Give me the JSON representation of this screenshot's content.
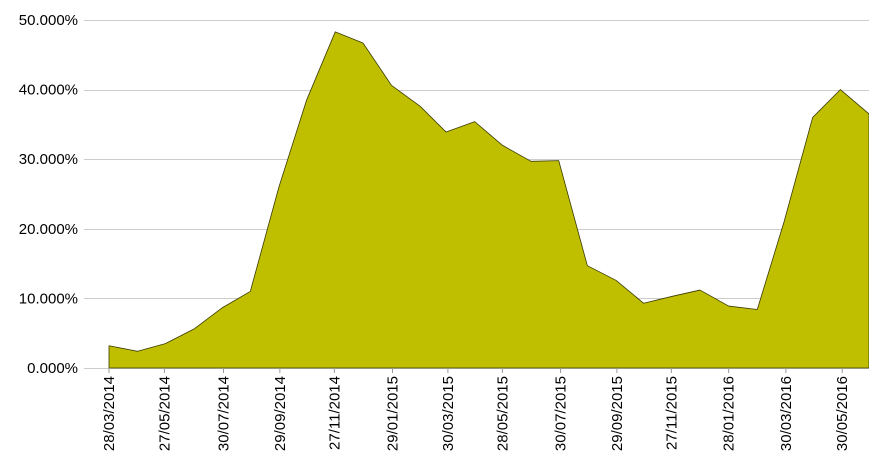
{
  "chart_data": {
    "type": "area",
    "title": "",
    "xlabel": "",
    "ylabel": "",
    "ylim": [
      0,
      50
    ],
    "grid": true,
    "colors": {
      "area_fill": "#bfbf00",
      "area_stroke": "#3a3a00",
      "gridline": "#cccccc"
    },
    "y_ticks": [
      {
        "value": 0,
        "label": "0.000%"
      },
      {
        "value": 10,
        "label": "10.000%"
      },
      {
        "value": 20,
        "label": "20.000%"
      },
      {
        "value": 30,
        "label": "30.000%"
      },
      {
        "value": 40,
        "label": "40.000%"
      },
      {
        "value": 50,
        "label": "50.000%"
      }
    ],
    "x_ticks": [
      {
        "date": "2014-03-28",
        "label": "28/03/2014"
      },
      {
        "date": "2014-05-27",
        "label": "27/05/2014"
      },
      {
        "date": "2014-07-30",
        "label": "30/07/2014"
      },
      {
        "date": "2014-09-29",
        "label": "29/09/2014"
      },
      {
        "date": "2014-11-27",
        "label": "27/11/2014"
      },
      {
        "date": "2015-01-29",
        "label": "29/01/2015"
      },
      {
        "date": "2015-03-30",
        "label": "30/03/2015"
      },
      {
        "date": "2015-05-28",
        "label": "28/05/2015"
      },
      {
        "date": "2015-07-30",
        "label": "30/07/2015"
      },
      {
        "date": "2015-09-29",
        "label": "29/09/2015"
      },
      {
        "date": "2015-11-27",
        "label": "27/11/2015"
      },
      {
        "date": "2016-01-28",
        "label": "28/01/2016"
      },
      {
        "date": "2016-03-30",
        "label": "30/03/2016"
      },
      {
        "date": "2016-05-30",
        "label": "30/05/2016"
      }
    ],
    "series": [
      {
        "points": [
          {
            "x": "2014-03-28",
            "y": 3.2
          },
          {
            "x": "2014-04-28",
            "y": 2.4
          },
          {
            "x": "2014-05-28",
            "y": 3.5
          },
          {
            "x": "2014-06-28",
            "y": 5.6
          },
          {
            "x": "2014-07-28",
            "y": 8.6
          },
          {
            "x": "2014-08-28",
            "y": 11.0
          },
          {
            "x": "2014-09-28",
            "y": 26.0
          },
          {
            "x": "2014-10-28",
            "y": 38.5
          },
          {
            "x": "2014-11-28",
            "y": 48.3
          },
          {
            "x": "2014-12-28",
            "y": 46.7
          },
          {
            "x": "2015-01-28",
            "y": 40.6
          },
          {
            "x": "2015-02-28",
            "y": 37.6
          },
          {
            "x": "2015-03-28",
            "y": 33.9
          },
          {
            "x": "2015-04-28",
            "y": 35.4
          },
          {
            "x": "2015-05-28",
            "y": 32.0
          },
          {
            "x": "2015-06-28",
            "y": 29.7
          },
          {
            "x": "2015-07-28",
            "y": 29.8
          },
          {
            "x": "2015-08-28",
            "y": 14.7
          },
          {
            "x": "2015-09-28",
            "y": 12.6
          },
          {
            "x": "2015-10-28",
            "y": 9.3
          },
          {
            "x": "2015-11-28",
            "y": 10.3
          },
          {
            "x": "2015-12-28",
            "y": 11.2
          },
          {
            "x": "2016-01-28",
            "y": 8.9
          },
          {
            "x": "2016-02-28",
            "y": 8.4
          },
          {
            "x": "2016-03-28",
            "y": 21.0
          },
          {
            "x": "2016-04-28",
            "y": 36.0
          },
          {
            "x": "2016-05-28",
            "y": 40.0
          },
          {
            "x": "2016-06-28",
            "y": 36.5
          }
        ]
      }
    ]
  }
}
